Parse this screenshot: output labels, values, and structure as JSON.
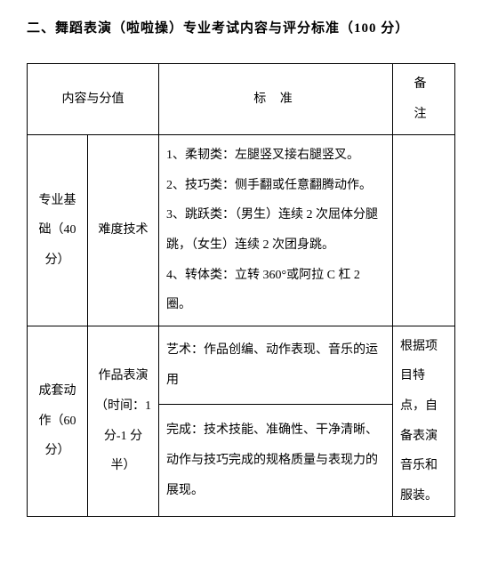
{
  "title": "二、舞蹈表演（啦啦操）专业考试内容与评分标准（100 分）",
  "headers": {
    "content_score": "内容与分值",
    "standard": "标 准",
    "note": "备 注"
  },
  "rows": [
    {
      "category": "专业基础（40 分）",
      "subcategory": "难度技术",
      "standard": "1、柔韧类：左腿竖叉接右腿竖叉。\n2、技巧类：侧手翻或任意翻腾动作。\n3、跳跃类：（男生）连续 2 次屈体分腿跳，（女生）连续 2 次团身跳。\n4、转体类：立转 360°或阿拉 C 杠 2 圈。",
      "note": ""
    },
    {
      "category": "成套动作（60 分）",
      "subcategory": "作品表演（时间：1 分-1 分半）",
      "standard_art": "艺术：作品创编、动作表现、音乐的运用",
      "standard_done": "完成：技术技能、准确性、干净清晰、动作与技巧完成的规格质量与表现力的展现。",
      "note": "根据项目特点，自备表演音乐和服装。"
    }
  ]
}
